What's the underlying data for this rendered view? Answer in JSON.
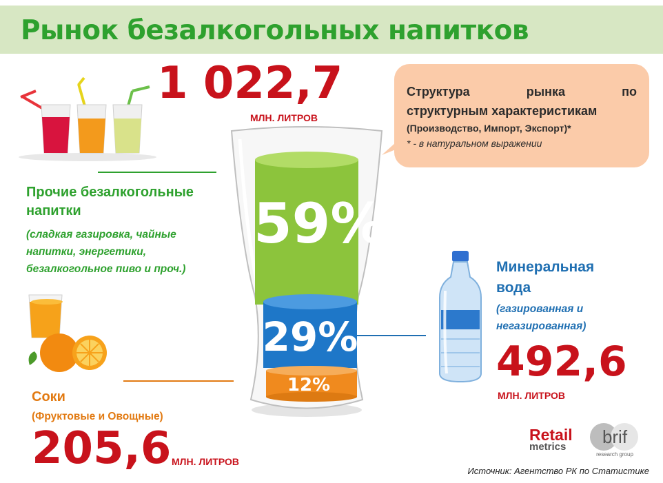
{
  "title": "Рынок безалкогольных напитков",
  "total": {
    "value": "1 022,7",
    "unit": "МЛН. ЛИТРОВ"
  },
  "callout": {
    "line1": "Структура рынка по",
    "line2": "структурным характеристикам",
    "line3": "(Производство, Импорт, Экспорт)*",
    "note": "* - в натуральном выражении"
  },
  "other_drinks": {
    "heading_line1": "Прочие безалкогольные",
    "heading_line2": "напитки",
    "desc_line1": "(сладкая газировка,  чайные",
    "desc_line2": "напитки, энергетики,",
    "desc_line3": "безалкогольное  пиво и проч.)"
  },
  "mineral_water": {
    "heading_line1": "Минеральная",
    "heading_line2": "вода",
    "desc_line1": "(газированная и",
    "desc_line2": "негазированная)",
    "value": "492,6",
    "unit": "МЛН. ЛИТРОВ"
  },
  "juices": {
    "heading": "Соки",
    "sub": "(Фруктовые и Овощные)",
    "value": "205,6",
    "unit": "МЛН. ЛИТРОВ"
  },
  "glass": {
    "segment_top": "59%",
    "segment_mid": "29%",
    "segment_bottom": "12%"
  },
  "colors": {
    "green": "#8cc43c",
    "blue": "#1e77c8",
    "orange": "#f08a1e",
    "red": "#c8121b"
  },
  "logos": {
    "retail": "Retail",
    "metrics": "metrics",
    "brif": "brif",
    "brif_sub": "research group"
  },
  "source": "Источник: Агентство РК по Статистике"
}
